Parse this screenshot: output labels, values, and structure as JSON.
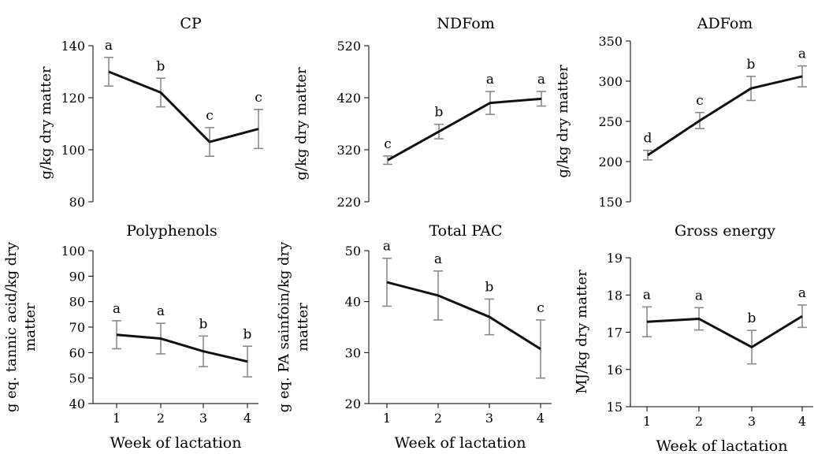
{
  "chart_data": [
    {
      "type": "line",
      "title": "CP",
      "ylabel": [
        "g/kg dry matter"
      ],
      "xlabel": "",
      "categories": [
        "1",
        "2",
        "3",
        "4"
      ],
      "ylim": [
        80,
        140
      ],
      "yticks": [
        80,
        100,
        120,
        140
      ],
      "grid": false,
      "values": [
        130,
        122,
        103,
        108
      ],
      "errors": [
        5.5,
        5.5,
        5.5,
        7.5
      ],
      "letters": [
        "a",
        "b",
        "c",
        "c"
      ]
    },
    {
      "type": "line",
      "title": "NDFom",
      "ylabel": [
        "g/kg dry matter"
      ],
      "xlabel": "",
      "categories": [
        "1",
        "2",
        "3",
        "4"
      ],
      "ylim": [
        220,
        520
      ],
      "yticks": [
        220,
        320,
        420,
        520
      ],
      "grid": false,
      "values": [
        300,
        355,
        410,
        418
      ],
      "errors": [
        8,
        14,
        22,
        14
      ],
      "letters": [
        "c",
        "b",
        "a",
        "a"
      ]
    },
    {
      "type": "line",
      "title": "ADFom",
      "ylabel": [
        "g/kg dry matter"
      ],
      "xlabel": "",
      "categories": [
        "1",
        "2",
        "3",
        "4"
      ],
      "ylim": [
        150,
        350
      ],
      "yticks": [
        150,
        200,
        250,
        300,
        350
      ],
      "grid": false,
      "values": [
        208,
        251,
        291,
        306
      ],
      "errors": [
        6,
        10,
        15,
        13
      ],
      "letters": [
        "d",
        "c",
        "b",
        "a"
      ]
    },
    {
      "type": "line",
      "title": "Polyphenols",
      "ylabel": [
        "g eq. tannic acid/kg dry",
        "matter"
      ],
      "xlabel": "Week of lactation",
      "categories": [
        "1",
        "2",
        "3",
        "4"
      ],
      "ylim": [
        40,
        100
      ],
      "yticks": [
        40,
        50,
        60,
        70,
        80,
        90,
        100
      ],
      "grid": false,
      "values": [
        67,
        65.5,
        60.5,
        56.5
      ],
      "errors": [
        5.5,
        6,
        6,
        6
      ],
      "letters": [
        "a",
        "a",
        "b",
        "b"
      ]
    },
    {
      "type": "line",
      "title": "Total PAC",
      "ylabel": [
        "g eq. PA sainfoin/kg dry",
        "matter"
      ],
      "xlabel": "Week of lactation",
      "categories": [
        "1",
        "2",
        "3",
        "4"
      ],
      "ylim": [
        20,
        50
      ],
      "yticks": [
        20,
        30,
        40,
        50
      ],
      "grid": false,
      "values": [
        43.8,
        41.2,
        37,
        30.7
      ],
      "errors": [
        4.7,
        4.8,
        3.5,
        5.7
      ],
      "letters": [
        "a",
        "a",
        "b",
        "c"
      ]
    },
    {
      "type": "line",
      "title": "Gross energy",
      "ylabel": [
        "MJ/kg dry matter"
      ],
      "xlabel": "Week of lactation",
      "categories": [
        "1",
        "2",
        "3",
        "4"
      ],
      "ylim": [
        15,
        19
      ],
      "yticks": [
        15,
        16,
        17,
        18,
        19
      ],
      "grid": false,
      "values": [
        17.28,
        17.36,
        16.6,
        17.43
      ],
      "errors": [
        0.4,
        0.3,
        0.45,
        0.3
      ],
      "letters": [
        "a",
        "a",
        "b",
        "a"
      ]
    }
  ]
}
